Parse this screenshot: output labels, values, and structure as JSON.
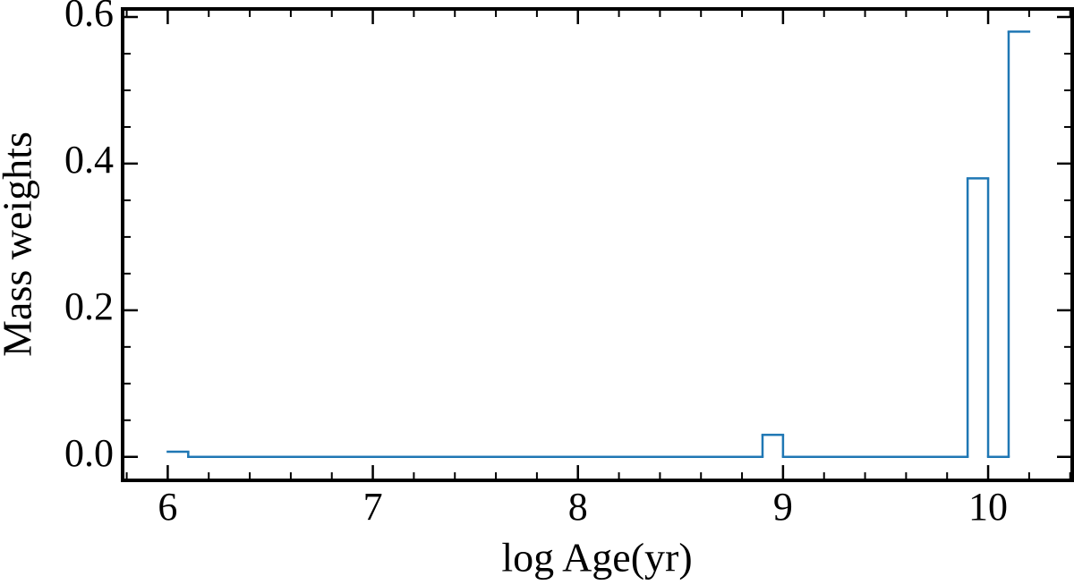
{
  "chart_data": {
    "type": "histogram",
    "xlabel": "log Age(yr)",
    "ylabel": "Mass weights",
    "bins": [
      6.0,
      6.1,
      8.9,
      9.0,
      9.9,
      10.0,
      10.1,
      10.2
    ],
    "values": [
      0.007,
      0,
      0.03,
      0,
      0.38,
      0,
      0.58
    ],
    "color": "#1f77b4",
    "xlim": [
      5.78,
      10.41
    ],
    "ylim": [
      -0.032,
      0.611
    ],
    "xticks": [
      6,
      7,
      8,
      9,
      10
    ],
    "yticks": [
      {
        "value": 0,
        "label": "0.0"
      },
      {
        "value": 0.2,
        "label": "0.2"
      },
      {
        "value": 0.4,
        "label": "0.4"
      },
      {
        "value": 0.6,
        "label": "0.6"
      }
    ]
  }
}
